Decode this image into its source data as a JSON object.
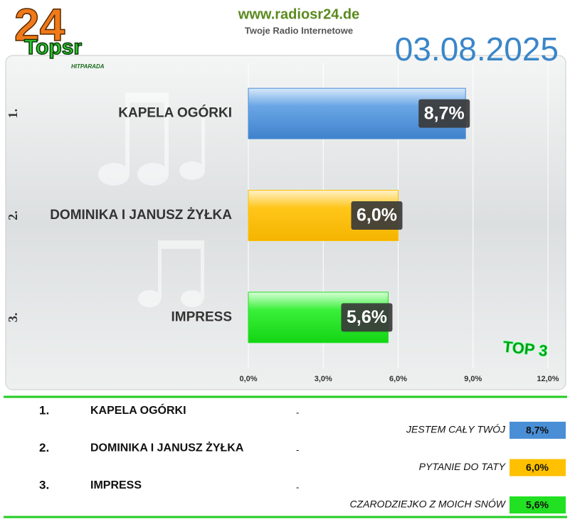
{
  "header": {
    "logo_number": "24",
    "logo_text": "Topsr",
    "logo_sub": "HITPARADA",
    "site": "www.radiosr24.de",
    "tagline": "Twoje Radio Internetowe",
    "date": "03.08.2025",
    "badge": "TOP 3"
  },
  "chart_data": {
    "type": "bar",
    "orientation": "horizontal",
    "ranks": [
      "1.",
      "2.",
      "3."
    ],
    "categories": [
      "KAPELA OGÓRKI",
      "DOMINIKA I JANUSZ ŻYŁKA",
      "IMPRESS"
    ],
    "values": [
      8.7,
      6.0,
      5.6
    ],
    "value_labels": [
      "8,7%",
      "6,0%",
      "5,6%"
    ],
    "colors": [
      "#4a8fd6",
      "#ffc000",
      "#22e022"
    ],
    "xlim": [
      0,
      12
    ],
    "xticks": [
      {
        "value": 0,
        "label": "0,0%"
      },
      {
        "value": 3,
        "label": "3,0%"
      },
      {
        "value": 6,
        "label": "6,0%"
      },
      {
        "value": 9,
        "label": "9,0%"
      },
      {
        "value": 12,
        "label": "12,0%"
      }
    ],
    "grid": true
  },
  "table": {
    "rows": [
      {
        "rank": "1.",
        "artist": "KAPELA OGÓRKI",
        "dash": "-",
        "song": "JESTEM CAŁY TWÓJ"
      },
      {
        "rank": "2.",
        "artist": "DOMINIKA I JANUSZ ŻYŁKA",
        "dash": "-",
        "song": "PYTANIE DO TATY"
      },
      {
        "rank": "3.",
        "artist": "IMPRESS",
        "dash": "-",
        "song": "CZARODZIEJKO Z MOICH SNÓW"
      }
    ]
  }
}
